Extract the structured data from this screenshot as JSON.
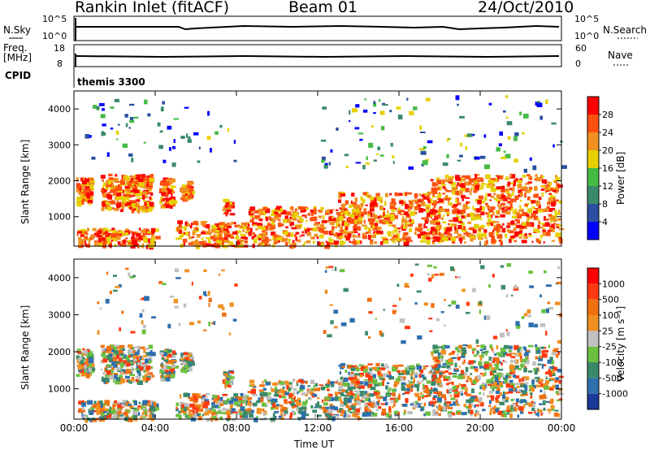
{
  "header": {
    "station": "Rankin Inlet (fitACF)",
    "beam": "Beam 01",
    "date": "24/Oct/2010"
  },
  "aux_panels": {
    "nsky_label": "N.Sky",
    "nsky_ticks": [
      "10^5",
      "10^0"
    ],
    "nsearch_label": "N.Search",
    "nsearch_ticks": [
      "10^5",
      "10^0"
    ],
    "freq_label": "Freq.",
    "freq_unit": "[MHz]",
    "freq_ticks": [
      "18",
      "8"
    ],
    "nave_label": "Nave",
    "nave_ticks": [
      "60",
      "0"
    ],
    "cpid_label": "CPID",
    "cpid_value": "themis 3300"
  },
  "chart_data": [
    {
      "type": "heatmap",
      "name": "power-panel",
      "ylabel": "Slant Range [km]",
      "yticks": [
        "4000",
        "3000",
        "2000",
        "1000"
      ],
      "ytick_values": [
        4000,
        3000,
        2000,
        1000
      ],
      "ylim": [
        180,
        4500
      ],
      "xlim": [
        0,
        24
      ],
      "colorbar_label": "Power [dB]",
      "colorbar_ticks": [
        "28",
        "24",
        "20",
        "16",
        "12",
        "8",
        "4"
      ],
      "colorbar_colors": [
        "#0000ff",
        "#2a4fa0",
        "#3a8a6a",
        "#44bb44",
        "#e6d000",
        "#f09020",
        "#ff5010",
        "#ff0000"
      ]
    },
    {
      "type": "heatmap",
      "name": "velocity-panel",
      "ylabel": "Slant Range [km]",
      "yticks": [
        "4000",
        "3000",
        "2000",
        "1000"
      ],
      "ytick_values": [
        4000,
        3000,
        2000,
        1000
      ],
      "ylim": [
        180,
        4500
      ],
      "xlim": [
        0,
        24
      ],
      "xlabel": "Time UT",
      "xticks": [
        "00:00",
        "04:00",
        "08:00",
        "12:00",
        "16:00",
        "20:00",
        "00:00"
      ],
      "xtick_values": [
        0,
        4,
        8,
        12,
        16,
        20,
        24
      ],
      "colorbar_label": "Velocity [m s⁻¹]",
      "colorbar_ticks": [
        "1000",
        "500",
        "100",
        "25",
        "-25",
        "-100",
        "-500",
        "-1000"
      ],
      "colorbar_colors": [
        "#1a3a9a",
        "#2e6fae",
        "#3a8a6a",
        "#6cc040",
        "#c0c0c0",
        "#f09020",
        "#f07010",
        "#ff3a10",
        "#ff0000"
      ]
    }
  ]
}
